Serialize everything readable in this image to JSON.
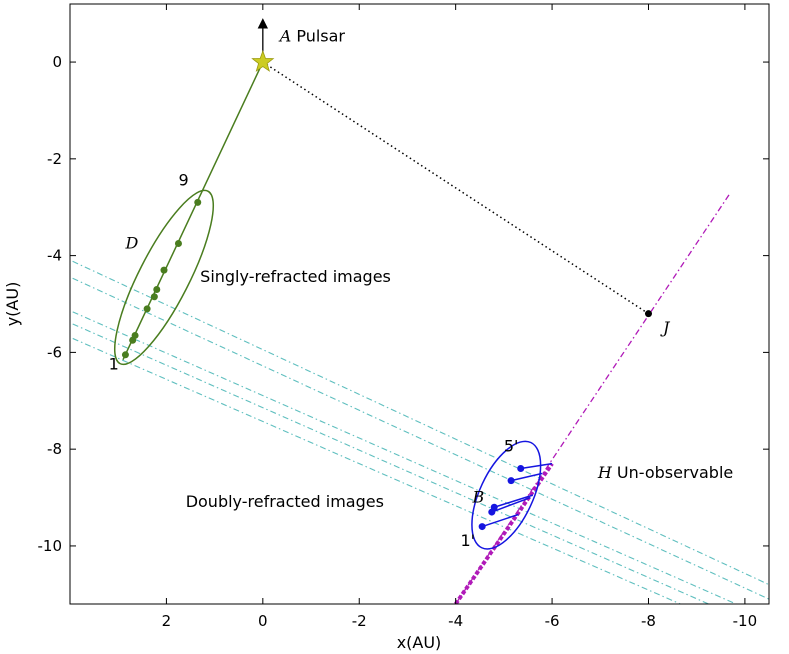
{
  "chart_data": {
    "type": "scatter",
    "xlabel": "x(AU)",
    "ylabel": "y(AU)",
    "xlim": [
      4,
      -10.5
    ],
    "ylim": [
      -11.2,
      1.2
    ],
    "x_ticks": [
      2,
      0,
      -2,
      -4,
      -6,
      -8,
      -10
    ],
    "x_tick_labels": [
      "2",
      "0",
      "-2",
      "-4",
      "-6",
      "-8",
      "-10"
    ],
    "y_ticks": [
      0,
      -2,
      -4,
      -6,
      -8,
      -10
    ],
    "y_tick_labels": [
      "0",
      "-2",
      "-4",
      "-6",
      "-8",
      "-10"
    ],
    "grid": false,
    "colors": {
      "single": "#4a7d1f",
      "double": "#1515e0",
      "screen": "#b01ab8",
      "lens_lines": "#5fbfbf",
      "star": "#cccc22",
      "los": "#000000"
    },
    "pulsar": {
      "x": 0.0,
      "y": 0.0,
      "velocity_tip": {
        "x": 0.0,
        "y": 0.8
      }
    },
    "single_images": [
      {
        "x": 2.85,
        "y": -6.05
      },
      {
        "x": 2.7,
        "y": -5.75
      },
      {
        "x": 2.65,
        "y": -5.65
      },
      {
        "x": 2.4,
        "y": -5.1
      },
      {
        "x": 2.25,
        "y": -4.85
      },
      {
        "x": 2.2,
        "y": -4.7
      },
      {
        "x": 2.05,
        "y": -4.3
      },
      {
        "x": 1.75,
        "y": -3.75
      },
      {
        "x": 1.35,
        "y": -2.9
      }
    ],
    "single_line": {
      "from": {
        "x": 0.0,
        "y": 0.0
      },
      "to": {
        "x": 2.9,
        "y": -6.15
      }
    },
    "double_images": [
      {
        "x": -4.55,
        "y": -9.6,
        "to": {
          "x": -5.3,
          "y": -9.35
        }
      },
      {
        "x": -4.75,
        "y": -9.3,
        "to": {
          "x": -5.55,
          "y": -9.0
        }
      },
      {
        "x": -4.8,
        "y": -9.2,
        "to": {
          "x": -5.6,
          "y": -8.95
        }
      },
      {
        "x": -5.15,
        "y": -8.65,
        "to": {
          "x": -5.8,
          "y": -8.5
        }
      },
      {
        "x": -5.35,
        "y": -8.4,
        "to": {
          "x": -6.0,
          "y": -8.3
        }
      }
    ],
    "lens_lines": [
      {
        "from": {
          "x": 4.2,
          "y": -4.0
        },
        "to": {
          "x": -10.5,
          "y": -10.8
        }
      },
      {
        "from": {
          "x": 4.2,
          "y": -4.35
        },
        "to": {
          "x": -10.5,
          "y": -11.1
        }
      },
      {
        "from": {
          "x": 4.2,
          "y": -5.05
        },
        "to": {
          "x": -10.5,
          "y": -11.5
        }
      },
      {
        "from": {
          "x": 4.2,
          "y": -5.3
        },
        "to": {
          "x": -10.5,
          "y": -11.75
        }
      },
      {
        "from": {
          "x": 4.2,
          "y": -5.6
        },
        "to": {
          "x": -10.5,
          "y": -12.0
        }
      }
    ],
    "screen_line": {
      "from": {
        "x": -4.0,
        "y": -11.2
      },
      "to": {
        "x": -9.7,
        "y": -2.7
      }
    },
    "screen_thick": {
      "from": {
        "x": -4.0,
        "y": -11.2
      },
      "to": {
        "x": -6.0,
        "y": -8.3
      }
    },
    "point_J": {
      "x": -8.0,
      "y": -5.2
    },
    "single_ellipse": {
      "cx": 2.05,
      "cy": -4.45,
      "rx": 0.52,
      "ry": 2.0,
      "rot": 27
    },
    "double_ellipse": {
      "cx": -5.05,
      "cy": -8.95,
      "rx": 0.55,
      "ry": 1.2,
      "rot": 25
    },
    "annotations": [
      {
        "symbol": "A",
        "text": "Pulsar",
        "x": -0.35,
        "y": 0.42
      },
      {
        "symbol": "",
        "text": "9",
        "x": 1.75,
        "y": -2.55
      },
      {
        "symbol": "D",
        "text": "",
        "x": 2.85,
        "y": -3.85
      },
      {
        "symbol": "",
        "text": "Singly-refracted images",
        "x": 1.3,
        "y": -4.55
      },
      {
        "symbol": "",
        "text": "1",
        "x": 3.2,
        "y": -6.35
      },
      {
        "symbol": "J",
        "text": "",
        "x": -8.3,
        "y": -5.6
      },
      {
        "symbol": "",
        "text": "5'",
        "x": -5.0,
        "y": -8.05
      },
      {
        "symbol": "H",
        "text": "Un-observable",
        "x": -6.95,
        "y": -8.6
      },
      {
        "symbol": "B",
        "text": "",
        "x": -4.35,
        "y": -9.1
      },
      {
        "symbol": "",
        "text": "Doubly-refracted images",
        "x": 1.6,
        "y": -9.2
      },
      {
        "symbol": "",
        "text": "1'",
        "x": -4.1,
        "y": -10.0
      }
    ]
  }
}
